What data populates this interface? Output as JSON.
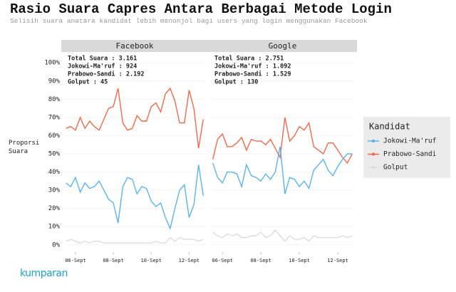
{
  "title": "Rasio Suara Capres Antara Berbagai Metode Login",
  "subtitle": "Selisih suara anatara kandidat lebih menonjol bagi users yang login menggunakan Facebook",
  "y_label": "Proporsi Suara",
  "legend_title": "Kandidat",
  "logo": "kumparan",
  "chart_data": [
    {
      "type": "line",
      "title": "Facebook",
      "annotations": [
        "Total Suara : 3.161",
        "Jokowi-Ma'ruf : 924",
        "Prabowo-Sandi : 2.192",
        "Golput : 45"
      ],
      "x": [
        5.5,
        5.75,
        6,
        6.25,
        6.5,
        6.75,
        7,
        7.25,
        7.5,
        7.75,
        8,
        8.25,
        8.5,
        8.75,
        9,
        9.25,
        9.5,
        9.75,
        10,
        10.25,
        10.5,
        10.75,
        11,
        11.25,
        11.5,
        11.75,
        12,
        12.25,
        12.5,
        12.75
      ],
      "xlim": [
        5.4,
        12.85
      ],
      "xticks": [
        {
          "value": 6,
          "label": "06-Sept"
        },
        {
          "value": 8,
          "label": "08-Sept"
        },
        {
          "value": 10,
          "label": "10-Sept"
        },
        {
          "value": 12,
          "label": "12-Sept"
        }
      ],
      "ylim": [
        -4,
        104
      ],
      "yticks": [
        {
          "value": 0,
          "label": "0%"
        },
        {
          "value": 10,
          "label": "10%"
        },
        {
          "value": 20,
          "label": "20%"
        },
        {
          "value": 30,
          "label": "30%"
        },
        {
          "value": 40,
          "label": "40%"
        },
        {
          "value": 50,
          "label": "50%"
        },
        {
          "value": 60,
          "label": "60%"
        },
        {
          "value": 70,
          "label": "70%"
        },
        {
          "value": 80,
          "label": "80%"
        },
        {
          "value": 90,
          "label": "90%"
        },
        {
          "value": 100,
          "label": "100%"
        }
      ],
      "grid": true,
      "series": [
        {
          "name": "Jokowi-Ma'ruf",
          "color": "#5ab4f0",
          "values": [
            34,
            32,
            37,
            29,
            34,
            31,
            32,
            35,
            30,
            25,
            23,
            12,
            32,
            37,
            36,
            28,
            32,
            31,
            24,
            21,
            23,
            15,
            9,
            20,
            30,
            33,
            15,
            22,
            44,
            27
          ]
        },
        {
          "name": "Prabowo-Sandi",
          "color": "#f06a4a",
          "values": [
            64,
            65,
            63,
            70,
            64,
            68,
            65,
            63,
            69,
            75,
            76,
            86,
            67,
            63,
            64,
            71,
            68,
            68,
            76,
            78,
            73,
            83,
            86,
            79,
            67,
            67,
            85,
            75,
            53,
            69
          ]
        },
        {
          "name": "Golput",
          "color": "#dcdcdc",
          "values": [
            2,
            3,
            2,
            1,
            2,
            1,
            2,
            2,
            1,
            1,
            1,
            1,
            1,
            1,
            1,
            1,
            1,
            1,
            1,
            2,
            1,
            1,
            4,
            2,
            4,
            3,
            3,
            3,
            2,
            3
          ]
        }
      ]
    },
    {
      "type": "line",
      "title": "Google",
      "annotations": [
        "Total Suara : 2.751",
        "Jokowi-Ma'ruf : 1.092",
        "Prabowo-Sandi : 1.529",
        "Golput : 130"
      ],
      "x": [
        5.5,
        5.75,
        6,
        6.25,
        6.5,
        6.75,
        7,
        7.25,
        7.5,
        7.75,
        8,
        8.25,
        8.5,
        8.75,
        9,
        9.25,
        9.5,
        9.75,
        10,
        10.25,
        10.5,
        10.75,
        11,
        11.25,
        11.5,
        11.75,
        12,
        12.25,
        12.5,
        12.75
      ],
      "xlim": [
        5.4,
        12.85
      ],
      "xticks": [
        {
          "value": 6,
          "label": "06-Sept"
        },
        {
          "value": 8,
          "label": "08-Sept"
        },
        {
          "value": 10,
          "label": "10-Sept"
        },
        {
          "value": 12,
          "label": "12-Sept"
        }
      ],
      "ylim": [
        -4,
        104
      ],
      "yticks": [
        {
          "value": 0,
          "label": "0%"
        },
        {
          "value": 10,
          "label": "10%"
        },
        {
          "value": 20,
          "label": "20%"
        },
        {
          "value": 30,
          "label": "30%"
        },
        {
          "value": 40,
          "label": "40%"
        },
        {
          "value": 50,
          "label": "50%"
        },
        {
          "value": 60,
          "label": "60%"
        },
        {
          "value": 70,
          "label": "70%"
        },
        {
          "value": 80,
          "label": "80%"
        },
        {
          "value": 90,
          "label": "90%"
        },
        {
          "value": 100,
          "label": "100%"
        }
      ],
      "grid": true,
      "series": [
        {
          "name": "Jokowi-Ma'ruf",
          "color": "#5ab4f0",
          "values": [
            45,
            37,
            34,
            40,
            40,
            39,
            32,
            44,
            38,
            37,
            35,
            39,
            36,
            40,
            54,
            28,
            37,
            36,
            32,
            35,
            31,
            41,
            44,
            47,
            41,
            38,
            43,
            47,
            50,
            50
          ]
        },
        {
          "name": "Prabowo-Sandi",
          "color": "#f06a4a",
          "values": [
            47,
            58,
            61,
            54,
            54,
            56,
            59,
            52,
            58,
            57,
            57,
            55,
            58,
            53,
            48,
            70,
            57,
            60,
            65,
            63,
            67,
            54,
            52,
            50,
            56,
            56,
            52,
            48,
            45,
            50
          ]
        },
        {
          "name": "Golput",
          "color": "#dcdcdc",
          "values": [
            7,
            5,
            4,
            6,
            5,
            6,
            4,
            4,
            5,
            5,
            7,
            4,
            5,
            8,
            5,
            2,
            5,
            3,
            3,
            4,
            2,
            5,
            4,
            4,
            4,
            4,
            4,
            5,
            4,
            5
          ]
        }
      ]
    }
  ]
}
